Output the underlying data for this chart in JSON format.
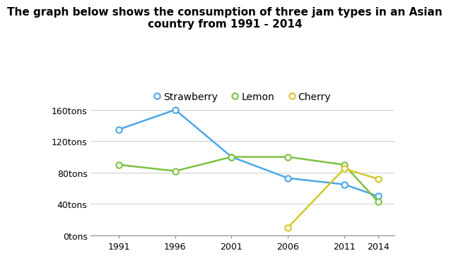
{
  "title": "The graph below shows the consumption of three jam types in an Asian\ncountry from 1991 - 2014",
  "years": [
    1991,
    1996,
    2001,
    2006,
    2011,
    2014
  ],
  "strawberry": [
    135,
    160,
    100,
    73,
    65,
    50
  ],
  "lemon": [
    90,
    82,
    100,
    100,
    90,
    43
  ],
  "cherry": [
    null,
    null,
    null,
    10,
    85,
    72
  ],
  "strawberry_color": "#4da6e8",
  "lemon_color": "#7dc142",
  "cherry_color": "#d4c827",
  "ylim": [
    0,
    180
  ],
  "yticks": [
    0,
    40,
    80,
    120,
    160
  ],
  "ytick_labels": [
    "0tons",
    "40tons",
    "80tons",
    "120tons",
    "160tons"
  ],
  "xticks": [
    1991,
    1996,
    2001,
    2006,
    2011,
    2014
  ],
  "background_color": "#ffffff",
  "title_fontsize": 11,
  "legend_fontsize": 10,
  "marker_size": 6,
  "linewidth": 1.8
}
